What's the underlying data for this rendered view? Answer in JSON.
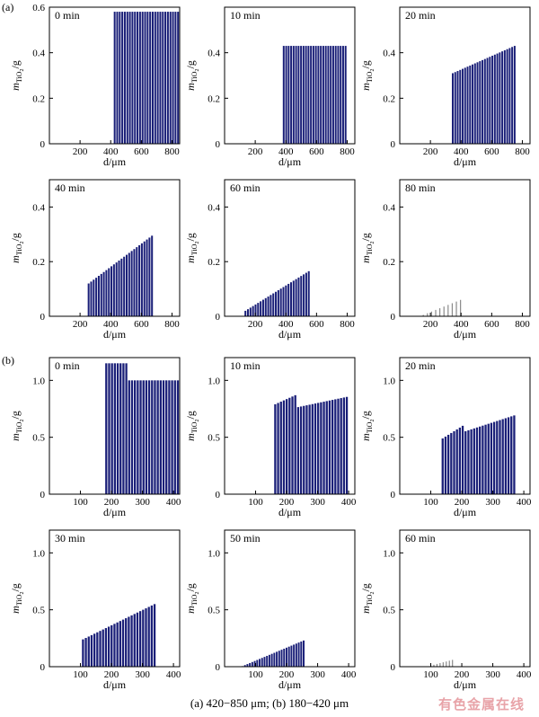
{
  "caption": "(a) 420−850 μm; (b) 180−420 μm",
  "watermark": "有色金属在线",
  "colors": {
    "bar": "#1a1f78",
    "faint_bar": "#8a8a8a",
    "axis": "#000000"
  },
  "groups": [
    {
      "label": "(a)"
    },
    {
      "label": "(b)"
    }
  ],
  "axis_text": {
    "ylabel_base": "m",
    "ylabel_sub": "TiO",
    "ylabel_sub2": "2",
    "ylabel_unit": "/g",
    "xlabel": "d/μm"
  },
  "chart_data": [
    {
      "type": "bar",
      "group": "(a)",
      "title": "0 min",
      "xlim": [
        0,
        850
      ],
      "ylim": [
        0,
        0.6
      ],
      "xticks": [
        200,
        400,
        600,
        800
      ],
      "yticks": [
        0,
        0.2,
        0.4,
        0.6
      ],
      "ytick_labels": [
        "0",
        "0.2",
        "0.4",
        "0.6"
      ],
      "x_range": [
        420,
        850
      ],
      "values_start": 0.58,
      "values_end": 0.58,
      "bar_count": 26,
      "faint": false
    },
    {
      "type": "bar",
      "group": "(a)",
      "title": "10 min",
      "xlim": [
        0,
        850
      ],
      "ylim": [
        0,
        0.6
      ],
      "xticks": [
        200,
        400,
        600,
        800
      ],
      "yticks": [
        0,
        0.2,
        0.4
      ],
      "ytick_labels": [
        "0",
        "0.2",
        "0.4"
      ],
      "x_range": [
        380,
        800
      ],
      "values_start": 0.43,
      "values_end": 0.43,
      "bar_count": 26,
      "faint": false
    },
    {
      "type": "bar",
      "group": "(a)",
      "title": "20 min",
      "xlim": [
        0,
        850
      ],
      "ylim": [
        0,
        0.6
      ],
      "xticks": [
        200,
        400,
        600,
        800
      ],
      "yticks": [
        0,
        0.2,
        0.4
      ],
      "ytick_labels": [
        "0",
        "0.2",
        "0.4"
      ],
      "x_range": [
        340,
        760
      ],
      "values_start": 0.31,
      "values_end": 0.43,
      "bar_count": 26,
      "faint": false
    },
    {
      "type": "bar",
      "group": "(a)",
      "title": "40 min",
      "xlim": [
        0,
        850
      ],
      "ylim": [
        0,
        0.5
      ],
      "xticks": [
        200,
        400,
        600,
        800
      ],
      "yticks": [
        0,
        0.2,
        0.4
      ],
      "ytick_labels": [
        "0",
        "0.2",
        "0.4"
      ],
      "x_range": [
        250,
        680
      ],
      "values_start": 0.12,
      "values_end": 0.295,
      "bar_count": 26,
      "faint": false
    },
    {
      "type": "bar",
      "group": "(a)",
      "title": "60 min",
      "xlim": [
        0,
        850
      ],
      "ylim": [
        0,
        0.5
      ],
      "xticks": [
        200,
        400,
        600,
        800
      ],
      "yticks": [
        0,
        0.2,
        0.4
      ],
      "ytick_labels": [
        "0",
        "0.2",
        "0.4"
      ],
      "x_range": [
        130,
        560
      ],
      "values_start": 0.02,
      "values_end": 0.165,
      "bar_count": 26,
      "faint": false
    },
    {
      "type": "bar",
      "group": "(a)",
      "title": "80 min",
      "xlim": [
        0,
        850
      ],
      "ylim": [
        0,
        0.5
      ],
      "xticks": [
        200,
        400,
        600,
        800
      ],
      "yticks": [
        0,
        0.2,
        0.4
      ],
      "ytick_labels": [
        "0",
        "0.2",
        "0.4"
      ],
      "x_range": [
        140,
        410
      ],
      "values_start": 0.005,
      "values_end": 0.06,
      "bar_count": 10,
      "faint": true
    },
    {
      "type": "bar",
      "group": "(b)",
      "title": "0 min",
      "xlim": [
        0,
        420
      ],
      "ylim": [
        0,
        1.2
      ],
      "xticks": [
        100,
        200,
        300,
        400
      ],
      "yticks": [
        0,
        0.5,
        1.0
      ],
      "ytick_labels": [
        "0",
        "0.5",
        "1.0"
      ],
      "x_range": [
        180,
        420
      ],
      "values_start": 1.15,
      "values_end": 1.0,
      "bar_count": 26,
      "faint": false,
      "step": {
        "x_break": 245,
        "high": 1.15,
        "low": 1.0
      }
    },
    {
      "type": "bar",
      "group": "(b)",
      "title": "10 min",
      "xlim": [
        0,
        420
      ],
      "ylim": [
        0,
        1.2
      ],
      "xticks": [
        100,
        200,
        300,
        400
      ],
      "yticks": [
        0,
        0.5,
        1.0
      ],
      "ytick_labels": [
        "0",
        "0.5",
        "1.0"
      ],
      "x_range": [
        160,
        400
      ],
      "values_start": 0.79,
      "values_end": 0.86,
      "bar_count": 26,
      "faint": false,
      "step": {
        "x_break": 225,
        "high": 0.87,
        "low": 0.76
      }
    },
    {
      "type": "bar",
      "group": "(b)",
      "title": "20 min",
      "xlim": [
        0,
        420
      ],
      "ylim": [
        0,
        1.2
      ],
      "xticks": [
        100,
        200,
        300,
        400
      ],
      "yticks": [
        0,
        0.5,
        1.0
      ],
      "ytick_labels": [
        "0",
        "0.5",
        "1.0"
      ],
      "x_range": [
        135,
        375
      ],
      "values_start": 0.49,
      "values_end": 0.7,
      "bar_count": 26,
      "faint": false,
      "step": {
        "x_break": 205,
        "high": 0.61,
        "low": 0.55
      }
    },
    {
      "type": "bar",
      "group": "(b)",
      "title": "30 min",
      "xlim": [
        0,
        420
      ],
      "ylim": [
        0,
        1.2
      ],
      "xticks": [
        100,
        200,
        300,
        400
      ],
      "yticks": [
        0,
        0.5,
        1.0
      ],
      "ytick_labels": [
        "0",
        "0.5",
        "1.0"
      ],
      "x_range": [
        105,
        345
      ],
      "values_start": 0.24,
      "values_end": 0.55,
      "bar_count": 26,
      "faint": false
    },
    {
      "type": "bar",
      "group": "(b)",
      "title": "50 min",
      "xlim": [
        0,
        420
      ],
      "ylim": [
        0,
        1.2
      ],
      "xticks": [
        100,
        200,
        300,
        400
      ],
      "yticks": [
        0,
        0.5,
        1.0
      ],
      "ytick_labels": [
        "0",
        "0.5",
        "1.0"
      ],
      "x_range": [
        55,
        260
      ],
      "values_start": 0.005,
      "values_end": 0.23,
      "bar_count": 26,
      "faint": false
    },
    {
      "type": "bar",
      "group": "(b)",
      "title": "60 min",
      "xlim": [
        0,
        420
      ],
      "ylim": [
        0,
        1.2
      ],
      "xticks": [
        100,
        200,
        300,
        400
      ],
      "yticks": [
        0,
        0.5,
        1.0
      ],
      "ytick_labels": [
        "0",
        "0.5",
        "1.0"
      ],
      "x_range": [
        95,
        175
      ],
      "values_start": 0.01,
      "values_end": 0.06,
      "bar_count": 8,
      "faint": true
    }
  ]
}
